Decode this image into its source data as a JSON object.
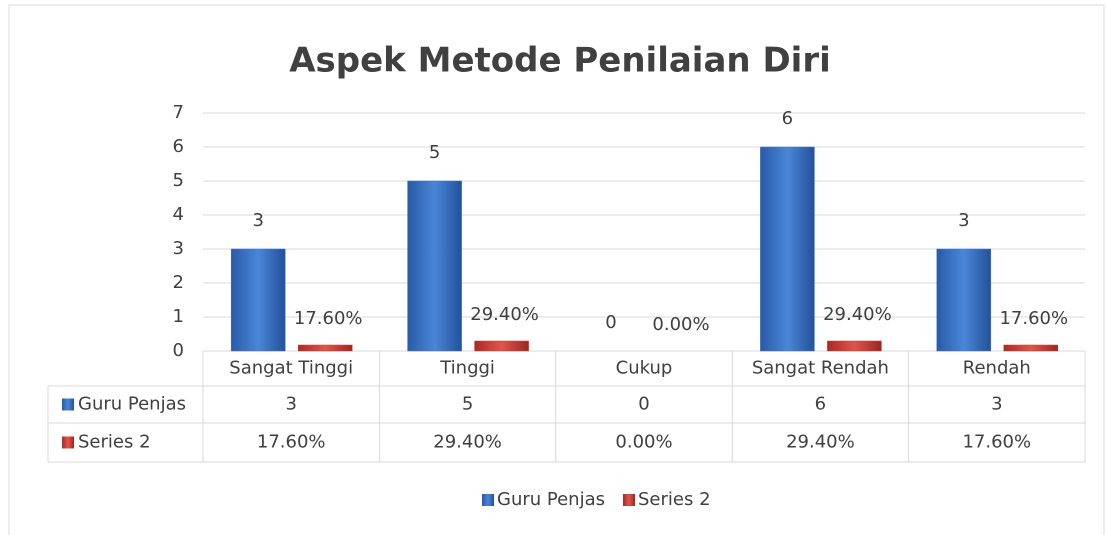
{
  "chart_data": {
    "type": "bar",
    "title": "Aspek Metode Penilaian Diri",
    "categories": [
      "Sangat Tinggi",
      "Tinggi",
      "Cukup",
      "Sangat Rendah",
      "Rendah"
    ],
    "series": [
      {
        "name": "Guru Penjas",
        "color": "#3d72c6",
        "values": [
          3,
          5,
          0,
          6,
          3
        ]
      },
      {
        "name": "Series 2",
        "color": "#c83a33",
        "values": [
          0.176,
          0.294,
          0,
          0.294,
          0.176
        ],
        "value_labels": [
          "17.60%",
          "29.40%",
          "0.00%",
          "29.40%",
          "17.60%"
        ]
      }
    ],
    "ylim": [
      0,
      7
    ],
    "yticks": [
      0,
      1,
      2,
      3,
      4,
      5,
      6,
      7
    ],
    "grid": true,
    "legend": "bottom",
    "data_table": true
  }
}
